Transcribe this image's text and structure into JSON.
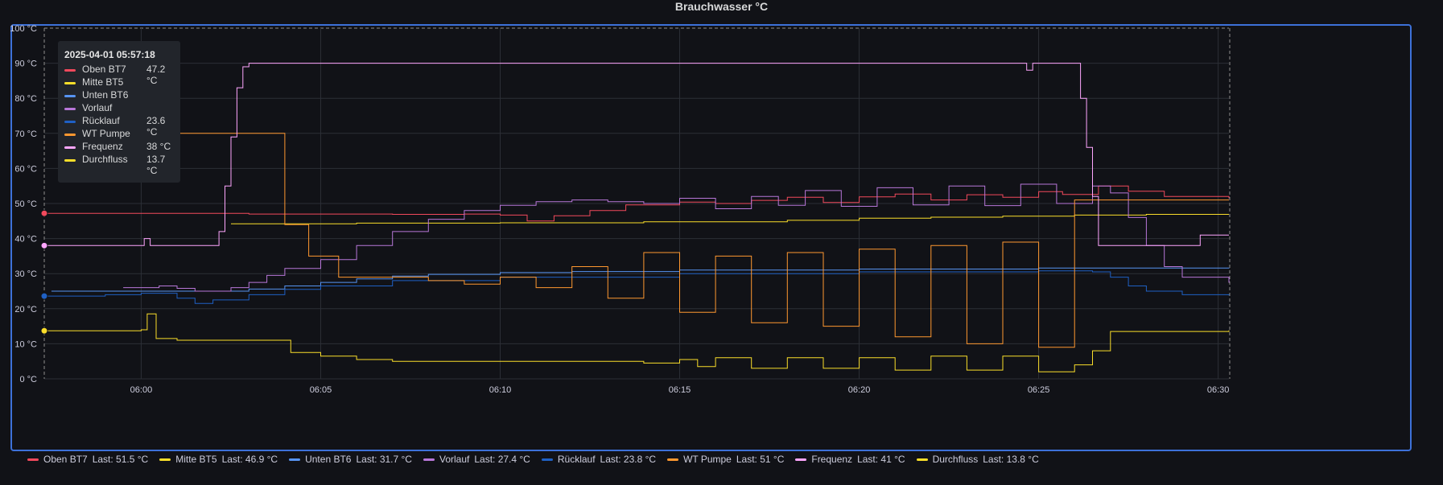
{
  "panel": {
    "title": "Brauchwasser °C"
  },
  "tooltip": {
    "time": "2025-04-01 05:57:18",
    "rows": [
      {
        "name": "Oben BT7",
        "value": "47.2 °C",
        "color": "#f2495c"
      },
      {
        "name": "Mitte BT5",
        "value": "",
        "color": "#fade2a"
      },
      {
        "name": "Unten BT6",
        "value": "",
        "color": "#5794f2"
      },
      {
        "name": "Vorlauf",
        "value": "",
        "color": "#b877d9"
      },
      {
        "name": "Rücklauf",
        "value": "23.6 °C",
        "color": "#1f60c4"
      },
      {
        "name": "WT Pumpe",
        "value": "",
        "color": "#ff9830"
      },
      {
        "name": "Frequenz",
        "value": "38 °C",
        "color": "#ffa6ff"
      },
      {
        "name": "Durchfluss",
        "value": "13.7 °C",
        "color": "#fade2a"
      }
    ]
  },
  "legend": {
    "last_prefix": "Last:",
    "items": [
      {
        "name": "Oben BT7",
        "last": "51.5 °C",
        "color": "#f2495c"
      },
      {
        "name": "Mitte BT5",
        "last": "46.9 °C",
        "color": "#fade2a"
      },
      {
        "name": "Unten BT6",
        "last": "31.7 °C",
        "color": "#5794f2"
      },
      {
        "name": "Vorlauf",
        "last": "27.4 °C",
        "color": "#b877d9"
      },
      {
        "name": "Rücklauf",
        "last": "23.8 °C",
        "color": "#1f60c4"
      },
      {
        "name": "WT Pumpe",
        "last": "51 °C",
        "color": "#ff9830"
      },
      {
        "name": "Frequenz",
        "last": "41 °C",
        "color": "#ffa6ff"
      },
      {
        "name": "Durchfluss",
        "last": "13.8 °C",
        "color": "#fade2a"
      }
    ]
  },
  "chart_data": {
    "type": "line",
    "title": "Brauchwasser °C",
    "x_unit": "minutes",
    "xlim": [
      "05:57:18",
      "06:30:18"
    ],
    "ylim": [
      0,
      100
    ],
    "y_ticks": [
      "0 °C",
      "10 °C",
      "20 °C",
      "30 °C",
      "40 °C",
      "50 °C",
      "60 °C",
      "70 °C",
      "80 °C",
      "90 °C",
      "100 °C"
    ],
    "x_ticks": [
      "06:00",
      "06:05",
      "06:10",
      "06:15",
      "06:20",
      "06:25",
      "06:30"
    ],
    "grid": true,
    "legend_position": "bottom",
    "series": [
      {
        "name": "Oben BT7",
        "color": "#f2495c",
        "step": true,
        "points": [
          [
            "05:57:18",
            47.2
          ],
          [
            "06:03:00",
            47.0
          ],
          [
            "06:07:00",
            46.9
          ],
          [
            "06:09:00",
            47.0
          ],
          [
            "06:10:00",
            46.7
          ],
          [
            "06:10:45",
            45.0
          ],
          [
            "06:11:30",
            46.5
          ],
          [
            "06:12:30",
            48.0
          ],
          [
            "06:13:30",
            49.6
          ],
          [
            "06:15:00",
            50.4
          ],
          [
            "06:16:00",
            50.0
          ],
          [
            "06:17:00",
            50.9
          ],
          [
            "06:18:00",
            51.8
          ],
          [
            "06:19:00",
            50.3
          ],
          [
            "06:20:00",
            51.9
          ],
          [
            "06:21:00",
            52.7
          ],
          [
            "06:22:00",
            51.0
          ],
          [
            "06:23:00",
            52.5
          ],
          [
            "06:24:00",
            51.8
          ],
          [
            "06:25:00",
            53.4
          ],
          [
            "06:25:40",
            52.6
          ],
          [
            "06:26:40",
            55.0
          ],
          [
            "06:27:30",
            53.5
          ],
          [
            "06:28:30",
            52.0
          ],
          [
            "06:30:18",
            51.5
          ]
        ]
      },
      {
        "name": "Mitte BT5",
        "color": "#fade2a",
        "step": true,
        "points": [
          [
            "06:02:30",
            44.2
          ],
          [
            "06:06:00",
            44.4
          ],
          [
            "06:10:00",
            44.5
          ],
          [
            "06:14:00",
            44.8
          ],
          [
            "06:18:00",
            45.2
          ],
          [
            "06:20:00",
            45.8
          ],
          [
            "06:22:00",
            46.1
          ],
          [
            "06:24:00",
            46.4
          ],
          [
            "06:26:00",
            46.7
          ],
          [
            "06:28:00",
            46.9
          ],
          [
            "06:30:18",
            46.9
          ]
        ]
      },
      {
        "name": "Unten BT6",
        "color": "#5794f2",
        "step": true,
        "points": [
          [
            "05:57:30",
            25.0
          ],
          [
            "06:00:00",
            25.0
          ],
          [
            "06:02:00",
            25.0
          ],
          [
            "06:03:00",
            25.6
          ],
          [
            "06:04:00",
            26.5
          ],
          [
            "06:05:00",
            27.5
          ],
          [
            "06:06:00",
            28.5
          ],
          [
            "06:07:00",
            29.3
          ],
          [
            "06:08:00",
            29.8
          ],
          [
            "06:10:00",
            30.3
          ],
          [
            "06:12:00",
            30.6
          ],
          [
            "06:15:00",
            31.0
          ],
          [
            "06:20:00",
            31.3
          ],
          [
            "06:25:00",
            31.6
          ],
          [
            "06:30:18",
            31.7
          ]
        ]
      },
      {
        "name": "Vorlauf",
        "color": "#b877d9",
        "step": true,
        "points": [
          [
            "05:59:30",
            26.0
          ],
          [
            "06:00:30",
            26.5
          ],
          [
            "06:01:00",
            25.8
          ],
          [
            "06:01:30",
            25.0
          ],
          [
            "06:02:30",
            26.0
          ],
          [
            "06:03:00",
            27.5
          ],
          [
            "06:03:30",
            29.5
          ],
          [
            "06:04:00",
            31.5
          ],
          [
            "06:05:00",
            34.0
          ],
          [
            "06:06:00",
            38.0
          ],
          [
            "06:07:00",
            42.0
          ],
          [
            "06:08:00",
            45.5
          ],
          [
            "06:09:00",
            48.0
          ],
          [
            "06:10:00",
            49.5
          ],
          [
            "06:11:00",
            50.5
          ],
          [
            "06:12:00",
            51.0
          ],
          [
            "06:13:00",
            50.5
          ],
          [
            "06:14:00",
            50.0
          ],
          [
            "06:15:00",
            51.5
          ],
          [
            "06:16:00",
            48.5
          ],
          [
            "06:17:00",
            52.0
          ],
          [
            "06:17:45",
            49.5
          ],
          [
            "06:18:30",
            53.7
          ],
          [
            "06:19:30",
            49.2
          ],
          [
            "06:20:30",
            54.5
          ],
          [
            "06:21:30",
            49.6
          ],
          [
            "06:22:30",
            55.0
          ],
          [
            "06:23:30",
            49.4
          ],
          [
            "06:24:30",
            55.5
          ],
          [
            "06:25:30",
            50.0
          ],
          [
            "06:26:30",
            55.0
          ],
          [
            "06:27:00",
            53.0
          ],
          [
            "06:27:30",
            46.0
          ],
          [
            "06:28:00",
            38.0
          ],
          [
            "06:28:30",
            32.0
          ],
          [
            "06:29:00",
            29.0
          ],
          [
            "06:30:18",
            27.4
          ]
        ]
      },
      {
        "name": "Rücklauf",
        "color": "#1f60c4",
        "step": true,
        "points": [
          [
            "05:57:18",
            23.6
          ],
          [
            "05:59:00",
            24.0
          ],
          [
            "06:00:00",
            24.4
          ],
          [
            "06:01:00",
            23.0
          ],
          [
            "06:01:30",
            21.5
          ],
          [
            "06:02:00",
            22.5
          ],
          [
            "06:03:00",
            24.0
          ],
          [
            "06:04:00",
            25.5
          ],
          [
            "06:05:00",
            26.5
          ],
          [
            "06:07:00",
            28.0
          ],
          [
            "06:10:00",
            29.0
          ],
          [
            "06:15:00",
            30.0
          ],
          [
            "06:20:00",
            30.5
          ],
          [
            "06:25:00",
            30.8
          ],
          [
            "06:26:30",
            30.5
          ],
          [
            "06:27:00",
            29.0
          ],
          [
            "06:27:30",
            26.5
          ],
          [
            "06:28:00",
            25.0
          ],
          [
            "06:29:00",
            24.0
          ],
          [
            "06:30:18",
            23.8
          ]
        ]
      },
      {
        "name": "WT Pumpe",
        "color": "#ff9830",
        "step": true,
        "points": [
          [
            "05:59:30",
            70
          ],
          [
            "06:04:00",
            44
          ],
          [
            "06:04:40",
            35
          ],
          [
            "06:05:30",
            29
          ],
          [
            "06:07:00",
            29
          ],
          [
            "06:08:00",
            28
          ],
          [
            "06:09:00",
            27
          ],
          [
            "06:10:00",
            29
          ],
          [
            "06:11:00",
            26
          ],
          [
            "06:12:00",
            32
          ],
          [
            "06:13:00",
            23
          ],
          [
            "06:14:00",
            36
          ],
          [
            "06:15:00",
            19
          ],
          [
            "06:16:00",
            35
          ],
          [
            "06:17:00",
            16
          ],
          [
            "06:18:00",
            36
          ],
          [
            "06:19:00",
            15
          ],
          [
            "06:20:00",
            37
          ],
          [
            "06:21:00",
            12
          ],
          [
            "06:22:00",
            38
          ],
          [
            "06:23:00",
            10
          ],
          [
            "06:24:00",
            39
          ],
          [
            "06:25:00",
            9
          ],
          [
            "06:26:00",
            51
          ],
          [
            "06:30:18",
            51
          ]
        ]
      },
      {
        "name": "Frequenz",
        "color": "#ffa6ff",
        "step": true,
        "points": [
          [
            "05:57:18",
            38
          ],
          [
            "06:00:00",
            38
          ],
          [
            "06:00:05",
            40
          ],
          [
            "06:00:15",
            38
          ],
          [
            "06:02:00",
            38
          ],
          [
            "06:02:10",
            42
          ],
          [
            "06:02:20",
            55
          ],
          [
            "06:02:30",
            69
          ],
          [
            "06:02:40",
            83
          ],
          [
            "06:02:50",
            89
          ],
          [
            "06:03:00",
            90
          ],
          [
            "06:24:30",
            90
          ],
          [
            "06:24:40",
            88
          ],
          [
            "06:24:50",
            90
          ],
          [
            "06:26:00",
            90
          ],
          [
            "06:26:10",
            80
          ],
          [
            "06:26:20",
            66
          ],
          [
            "06:26:30",
            52
          ],
          [
            "06:26:40",
            38
          ],
          [
            "06:28:30",
            38
          ],
          [
            "06:29:00",
            38
          ],
          [
            "06:29:30",
            41
          ],
          [
            "06:30:18",
            41
          ]
        ]
      },
      {
        "name": "Durchfluss",
        "color": "#fade2a",
        "step": true,
        "points": [
          [
            "05:57:18",
            13.7
          ],
          [
            "06:00:00",
            14.0
          ],
          [
            "06:00:10",
            18.5
          ],
          [
            "06:00:25",
            11.5
          ],
          [
            "06:01:00",
            11.0
          ],
          [
            "06:04:00",
            11.0
          ],
          [
            "06:04:10",
            7.5
          ],
          [
            "06:05:00",
            6.5
          ],
          [
            "06:06:00",
            5.5
          ],
          [
            "06:07:00",
            5.0
          ],
          [
            "06:14:00",
            4.5
          ],
          [
            "06:15:00",
            5.5
          ],
          [
            "06:15:30",
            3.5
          ],
          [
            "06:16:00",
            6.0
          ],
          [
            "06:17:00",
            3.0
          ],
          [
            "06:18:00",
            6.0
          ],
          [
            "06:19:00",
            3.0
          ],
          [
            "06:20:00",
            6.0
          ],
          [
            "06:21:00",
            2.5
          ],
          [
            "06:22:00",
            6.5
          ],
          [
            "06:23:00",
            2.5
          ],
          [
            "06:24:00",
            6.5
          ],
          [
            "06:25:00",
            2.0
          ],
          [
            "06:26:00",
            4.0
          ],
          [
            "06:26:30",
            8.0
          ],
          [
            "06:27:00",
            13.5
          ],
          [
            "06:30:18",
            13.8
          ]
        ]
      }
    ]
  }
}
